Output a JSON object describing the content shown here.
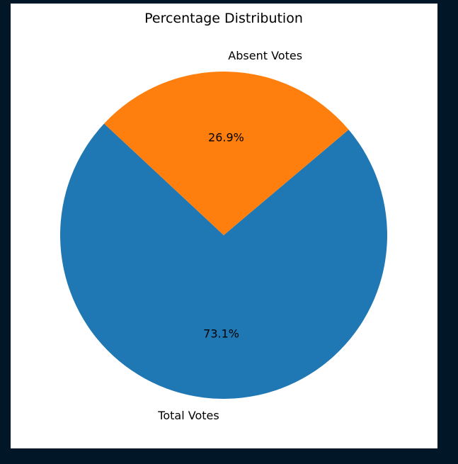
{
  "chart_data": {
    "type": "pie",
    "title": "Percentage Distribution",
    "labels": [
      "Total Votes",
      "Absent Votes"
    ],
    "values": [
      73.1,
      26.9
    ],
    "percent_labels": [
      "73.1%",
      "26.9%"
    ],
    "colors": [
      "#1f77b4",
      "#ff7f0e"
    ],
    "start_angle_deg": 137,
    "direction": "counterclockwise"
  }
}
